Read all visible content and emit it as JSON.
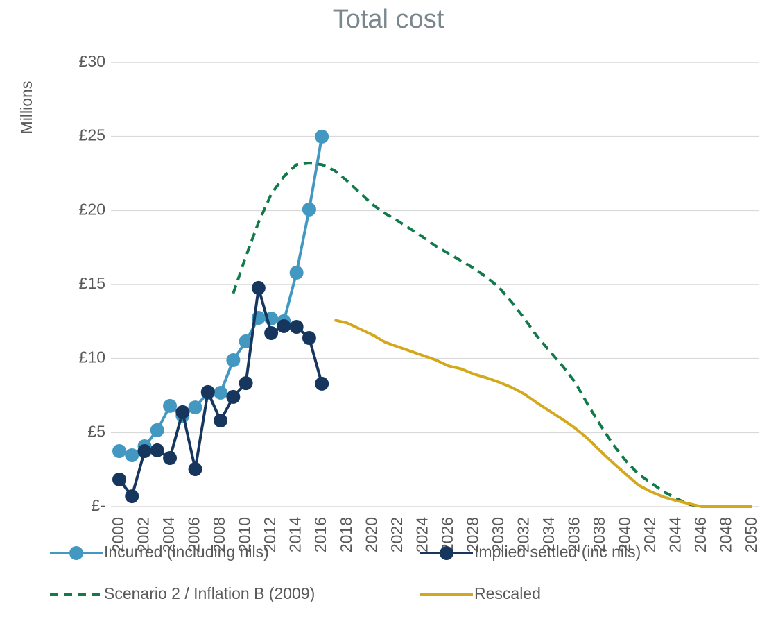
{
  "chart_data": {
    "type": "line",
    "title": "Total cost",
    "ylabel": "Millions",
    "x": [
      2000,
      2001,
      2002,
      2003,
      2004,
      2005,
      2006,
      2007,
      2008,
      2009,
      2010,
      2011,
      2012,
      2013,
      2014,
      2015,
      2016,
      2017,
      2018,
      2019,
      2020,
      2021,
      2022,
      2023,
      2024,
      2025,
      2026,
      2027,
      2028,
      2029,
      2030,
      2031,
      2032,
      2033,
      2034,
      2035,
      2036,
      2037,
      2038,
      2039,
      2040,
      2041,
      2042,
      2043,
      2044,
      2045,
      2046,
      2047,
      2048,
      2049,
      2050
    ],
    "xlim": [
      2000,
      2050
    ],
    "xticks": [
      2000,
      2002,
      2004,
      2006,
      2008,
      2010,
      2012,
      2014,
      2016,
      2018,
      2020,
      2022,
      2024,
      2026,
      2028,
      2030,
      2032,
      2034,
      2036,
      2038,
      2040,
      2042,
      2044,
      2046,
      2048,
      2050
    ],
    "ylim": [
      0,
      30
    ],
    "yticks": [
      {
        "value": 0,
        "label": "£-"
      },
      {
        "value": 5,
        "label": "£5"
      },
      {
        "value": 10,
        "label": "£10"
      },
      {
        "value": 15,
        "label": "£15"
      },
      {
        "value": 20,
        "label": "£20"
      },
      {
        "value": 25,
        "label": "£25"
      },
      {
        "value": 30,
        "label": "£30"
      }
    ],
    "grid": true,
    "legend": "bottom",
    "series": [
      {
        "name": "Incurred (including nils)",
        "color": "#4298c0",
        "marker": true,
        "dash": false,
        "values": [
          3.75,
          3.47,
          4.08,
          5.16,
          6.8,
          6.14,
          6.7,
          7.69,
          7.69,
          9.89,
          11.16,
          12.75,
          12.7,
          12.52,
          15.8,
          20.07,
          24.99,
          null,
          null,
          null,
          null,
          null,
          null,
          null,
          null,
          null,
          null,
          null,
          null,
          null,
          null,
          null,
          null,
          null,
          null,
          null,
          null,
          null,
          null,
          null,
          null,
          null,
          null,
          null,
          null,
          null,
          null,
          null,
          null,
          null,
          null
        ]
      },
      {
        "name": "Implied settled (inc nils)",
        "color": "#17365d",
        "marker": true,
        "dash": false,
        "values": [
          1.83,
          0.7,
          3.75,
          3.8,
          3.28,
          6.38,
          2.53,
          7.74,
          5.81,
          7.41,
          8.34,
          14.77,
          11.72,
          12.19,
          12.14,
          11.39,
          8.3,
          null,
          null,
          null,
          null,
          null,
          null,
          null,
          null,
          null,
          null,
          null,
          null,
          null,
          null,
          null,
          null,
          null,
          null,
          null,
          null,
          null,
          null,
          null,
          null,
          null,
          null,
          null,
          null,
          null,
          null,
          null,
          null,
          null,
          null
        ]
      },
      {
        "name": "Scenario 2 / Inflation B (2009)",
        "color": "#117a4a",
        "marker": false,
        "dash": true,
        "values": [
          null,
          null,
          null,
          null,
          null,
          null,
          null,
          null,
          null,
          14.4,
          16.9,
          19.2,
          21.1,
          22.3,
          23.1,
          23.2,
          23.1,
          22.7,
          22.0,
          21.2,
          20.4,
          19.8,
          19.3,
          18.75,
          18.2,
          17.6,
          17.1,
          16.6,
          16.1,
          15.5,
          14.8,
          13.8,
          12.7,
          11.5,
          10.5,
          9.5,
          8.4,
          6.9,
          5.5,
          4.2,
          3.1,
          2.2,
          1.6,
          1.0,
          0.55,
          0.15,
          0,
          0,
          0,
          0,
          0
        ]
      },
      {
        "name": "Rescaled",
        "color": "#d4a81c",
        "marker": false,
        "dash": false,
        "values": [
          null,
          null,
          null,
          null,
          null,
          null,
          null,
          null,
          null,
          null,
          null,
          null,
          null,
          null,
          null,
          null,
          null,
          12.6,
          12.4,
          12.0,
          11.6,
          11.1,
          10.8,
          10.5,
          10.2,
          9.9,
          9.5,
          9.3,
          8.95,
          8.7,
          8.4,
          8.05,
          7.6,
          7.0,
          6.45,
          5.9,
          5.3,
          4.6,
          3.75,
          2.95,
          2.2,
          1.45,
          1.0,
          0.65,
          0.4,
          0.2,
          0,
          0,
          0,
          0,
          0
        ]
      }
    ]
  }
}
